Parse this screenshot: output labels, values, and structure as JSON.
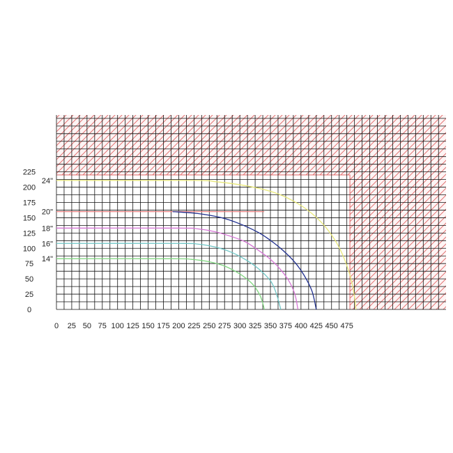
{
  "chart_data": {
    "type": "line",
    "title": "",
    "xlabel": "",
    "ylabel": "",
    "xlim": [
      0,
      475
    ],
    "ylim": [
      0,
      225
    ],
    "x_ticks": [
      "0",
      "25",
      "50",
      "75",
      "100",
      "125",
      "150",
      "175",
      "200",
      "225",
      "250",
      "275",
      "300",
      "325",
      "350",
      "375",
      "400",
      "425",
      "450",
      "475"
    ],
    "y_ticks": [
      "0",
      "25",
      "50",
      "75",
      "100",
      "125",
      "150",
      "175",
      "200",
      "225"
    ],
    "grid": "on",
    "hatched_regions": [
      "top band above 220",
      "right band beyond 480"
    ],
    "hatch_color": "#e06666",
    "series": [
      {
        "name": "24\"",
        "color": "#e8e87a",
        "points": [
          [
            0,
            211
          ],
          [
            220,
            211
          ],
          [
            260,
            209
          ],
          [
            300,
            204
          ],
          [
            340,
            196
          ],
          [
            370,
            186
          ],
          [
            400,
            170
          ],
          [
            420,
            155
          ],
          [
            440,
            135
          ],
          [
            460,
            106
          ],
          [
            475,
            72
          ],
          [
            485,
            36
          ],
          [
            490,
            0
          ]
        ]
      },
      {
        "name": "20\"",
        "color": "#e47b7b",
        "points": [
          [
            0,
            160
          ],
          [
            340,
            160
          ]
        ]
      },
      {
        "name": "",
        "color": "#1f2f8f",
        "points": [
          [
            190,
            160
          ],
          [
            230,
            157
          ],
          [
            270,
            150
          ],
          [
            300,
            140
          ],
          [
            330,
            126
          ],
          [
            350,
            113
          ],
          [
            370,
            97
          ],
          [
            390,
            77
          ],
          [
            405,
            56
          ],
          [
            418,
            30
          ],
          [
            425,
            0
          ]
        ]
      },
      {
        "name": "18\"",
        "color": "#d676d6",
        "points": [
          [
            0,
            133
          ],
          [
            200,
            133
          ],
          [
            230,
            132
          ],
          [
            260,
            127
          ],
          [
            290,
            118
          ],
          [
            310,
            110
          ],
          [
            330,
            97
          ],
          [
            350,
            82
          ],
          [
            365,
            67
          ],
          [
            380,
            47
          ],
          [
            390,
            25
          ],
          [
            395,
            0
          ]
        ]
      },
      {
        "name": "16\"",
        "color": "#6ec6c6",
        "points": [
          [
            0,
            108
          ],
          [
            200,
            108
          ],
          [
            230,
            107
          ],
          [
            260,
            102
          ],
          [
            285,
            94
          ],
          [
            305,
            84
          ],
          [
            325,
            71
          ],
          [
            340,
            58
          ],
          [
            352,
            44
          ],
          [
            360,
            25
          ],
          [
            367,
            0
          ]
        ]
      },
      {
        "name": "14\"",
        "color": "#7fd67f",
        "points": [
          [
            0,
            83
          ],
          [
            190,
            83
          ],
          [
            220,
            82
          ],
          [
            250,
            78
          ],
          [
            275,
            71
          ],
          [
            295,
            61
          ],
          [
            310,
            51
          ],
          [
            322,
            40
          ],
          [
            332,
            25
          ],
          [
            337,
            12
          ],
          [
            340,
            0
          ]
        ]
      }
    ],
    "series_label_y": {
      "24\"": 211,
      "20\"": 160,
      "18\"": 133,
      "16\"": 108,
      "14\"": 83
    }
  }
}
